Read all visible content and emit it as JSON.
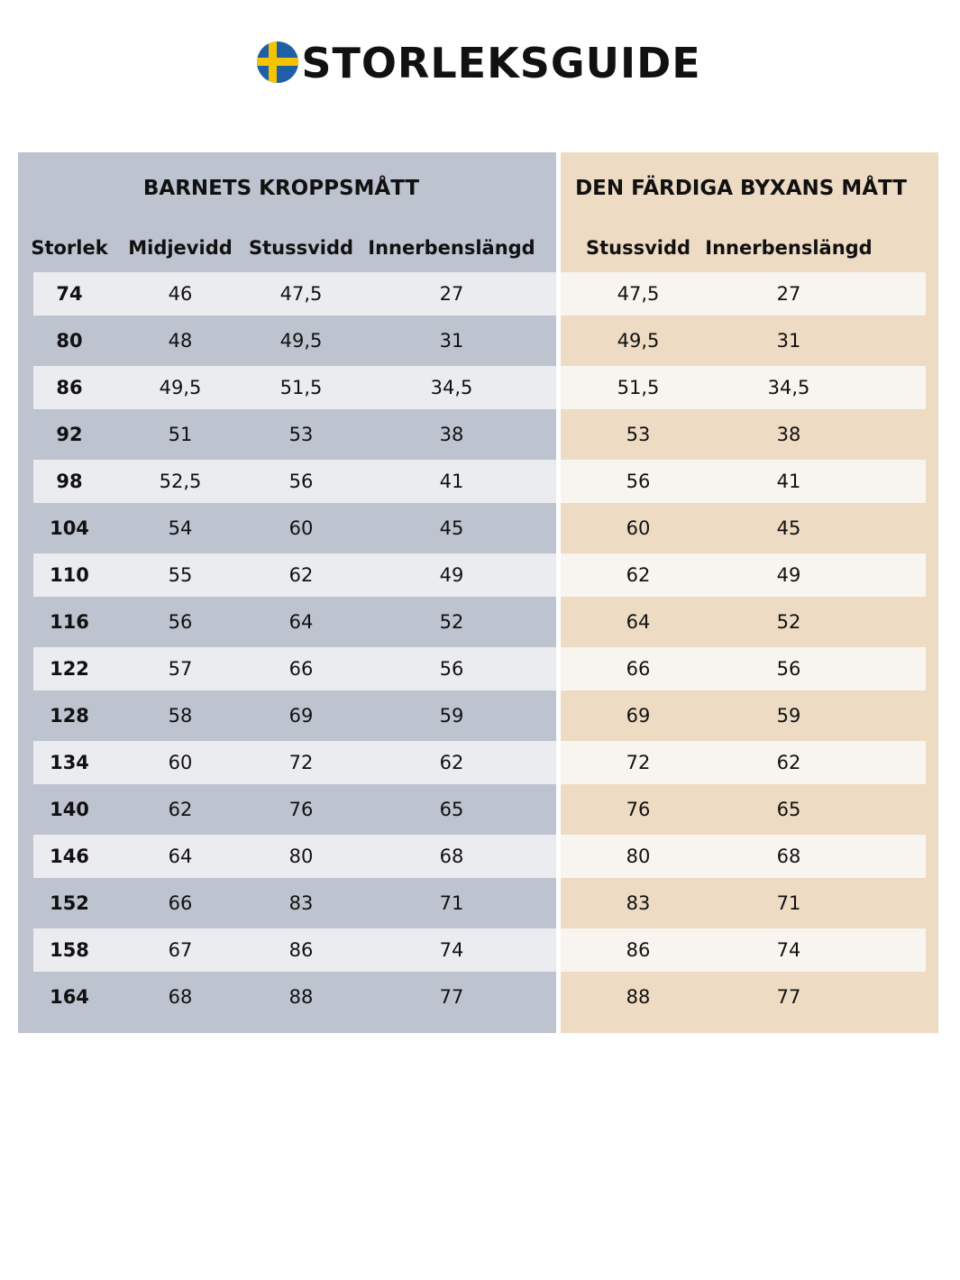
{
  "title": "STORLEKSGUIDE",
  "table": {
    "groups": [
      {
        "title": "BARNETS KROPPSMÅTT",
        "columns": [
          "Storlek",
          "Midjevidd",
          "Stussvidd",
          "Innerbenslängd"
        ]
      },
      {
        "title": "DEN FÄRDIGA BYXANS MÅTT",
        "columns": [
          "Stussvidd",
          "Innerbenslängd"
        ]
      }
    ],
    "rows": [
      [
        "74",
        "46",
        "47,5",
        "27",
        "47,5",
        "27"
      ],
      [
        "80",
        "48",
        "49,5",
        "31",
        "49,5",
        "31"
      ],
      [
        "86",
        "49,5",
        "51,5",
        "34,5",
        "51,5",
        "34,5"
      ],
      [
        "92",
        "51",
        "53",
        "38",
        "53",
        "38"
      ],
      [
        "98",
        "52,5",
        "56",
        "41",
        "56",
        "41"
      ],
      [
        "104",
        "54",
        "60",
        "45",
        "60",
        "45"
      ],
      [
        "110",
        "55",
        "62",
        "49",
        "62",
        "49"
      ],
      [
        "116",
        "56",
        "64",
        "52",
        "64",
        "52"
      ],
      [
        "122",
        "57",
        "66",
        "56",
        "66",
        "56"
      ],
      [
        "128",
        "58",
        "69",
        "59",
        "69",
        "59"
      ],
      [
        "134",
        "60",
        "72",
        "62",
        "72",
        "62"
      ],
      [
        "140",
        "62",
        "76",
        "65",
        "76",
        "65"
      ],
      [
        "146",
        "64",
        "80",
        "68",
        "80",
        "68"
      ],
      [
        "152",
        "66",
        "83",
        "71",
        "83",
        "71"
      ],
      [
        "158",
        "67",
        "86",
        "74",
        "86",
        "74"
      ],
      [
        "164",
        "68",
        "88",
        "77",
        "88",
        "77"
      ]
    ]
  }
}
